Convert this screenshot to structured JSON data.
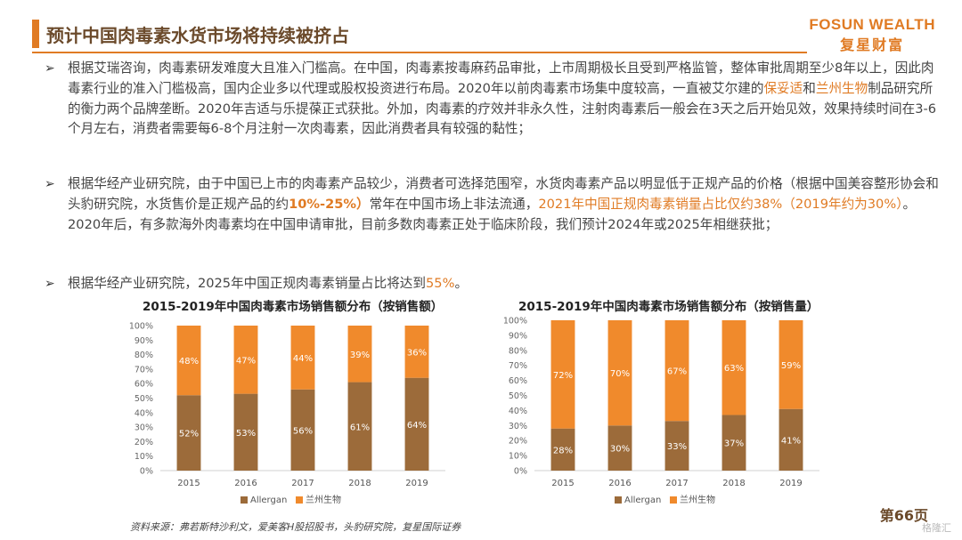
{
  "header": {
    "title": "预计中国肉毒素水货市场将持续被挤占",
    "brand_en": "FOSUN WEALTH",
    "brand_cn": "复星财富"
  },
  "bullets": [
    {
      "segments": [
        {
          "text": "根据艾瑞咨询，肉毒素研发难度大且准入门槛高。在中国，肉毒素按毒麻药品审批，上市周期极长且受到严格监管，整体审批周期至少8年以上，因此肉毒素行业的准入门槛极高，国内企业多以代理或股权投资进行布局。2020年以前肉毒素市场集中度较高，一直被艾尔建的",
          "style": ""
        },
        {
          "text": "保妥适",
          "style": "hl"
        },
        {
          "text": "和",
          "style": ""
        },
        {
          "text": "兰州生物",
          "style": "hl"
        },
        {
          "text": "制品研究所的衡力两个品牌垄断。2020年吉适与乐提葆正式获批。外加，肉毒素的疗效并非永久性，注射肉毒素后一般会在3天之后开始见效，效果持续时间在3-6个月左右，消费者需要每6-8个月注射一次肉毒素，因此消费者具有较强的黏性；",
          "style": ""
        }
      ]
    },
    {
      "segments": [
        {
          "text": "根据华经产业研究院，由于中国已上市的肉毒素产品较少，消费者可选择范围窄，水货肉毒素产品以明显低于正规产品的价格（根据中国美容整形协会和头豹研究院，水货售价是正规产品的约",
          "style": ""
        },
        {
          "text": "10%-25%）",
          "style": "hlb"
        },
        {
          "text": "常年在中国市场上非法流通，",
          "style": ""
        },
        {
          "text": "2021年中国正规肉毒素销量占比仅约38%（2019年约为30%）",
          "style": "hl"
        },
        {
          "text": "。2020年后，有多款海外肉毒素均在中国申请审批，目前多数肉毒素正处于临床阶段，我们预计2024年或2025年相继获批；",
          "style": ""
        }
      ]
    },
    {
      "segments": [
        {
          "text": "根据华经产业研究院，2025年中国正规肉毒素销量占比将达到",
          "style": ""
        },
        {
          "text": "55%",
          "style": "hl"
        },
        {
          "text": "。",
          "style": ""
        }
      ]
    }
  ],
  "chart_data": [
    {
      "type": "bar",
      "stacked": true,
      "title": "2015-2019年中国肉毒素市场销售额分布（按销售额）",
      "categories": [
        "2015",
        "2016",
        "2017",
        "2018",
        "2019"
      ],
      "series": [
        {
          "name": "Allergan",
          "values": [
            52,
            53,
            56,
            61,
            64
          ],
          "labels": [
            "52%",
            "53%",
            "56%",
            "61%",
            "64%"
          ],
          "color": "#9c6b3a"
        },
        {
          "name": "兰州生物",
          "values": [
            48,
            47,
            44,
            39,
            36
          ],
          "labels": [
            "48%",
            "47%",
            "44%",
            "39%",
            "36%"
          ],
          "color": "#f08a2c"
        }
      ],
      "yticks": [
        "0%",
        "10%",
        "20%",
        "30%",
        "40%",
        "50%",
        "60%",
        "70%",
        "80%",
        "90%",
        "100%"
      ],
      "ylim": [
        0,
        100
      ],
      "legend": "bottom"
    },
    {
      "type": "bar",
      "stacked": true,
      "title": "2015-2019年中国肉毒素市场销售额分布（按销售量）",
      "categories": [
        "2015",
        "2016",
        "2017",
        "2018",
        "2019"
      ],
      "series": [
        {
          "name": "Allergan",
          "values": [
            28,
            30,
            33,
            37,
            41
          ],
          "labels": [
            "28%",
            "30%",
            "33%",
            "37%",
            "41%"
          ],
          "color": "#9c6b3a"
        },
        {
          "name": "兰州生物",
          "values": [
            72,
            70,
            67,
            63,
            59
          ],
          "labels": [
            "72%",
            "70%",
            "67%",
            "63%",
            "59%"
          ],
          "color": "#f08a2c"
        }
      ],
      "yticks": [
        "0%",
        "10%",
        "20%",
        "30%",
        "40%",
        "50%",
        "60%",
        "70%",
        "80%",
        "90%",
        "100%"
      ],
      "ylim": [
        0,
        100
      ],
      "legend": "bottom"
    }
  ],
  "footer": {
    "source": "资料来源：弗若斯特沙利文，爱美客H股招股书，头豹研究院，复星国际证券",
    "page": "第66页",
    "watermark": "格隆汇"
  }
}
